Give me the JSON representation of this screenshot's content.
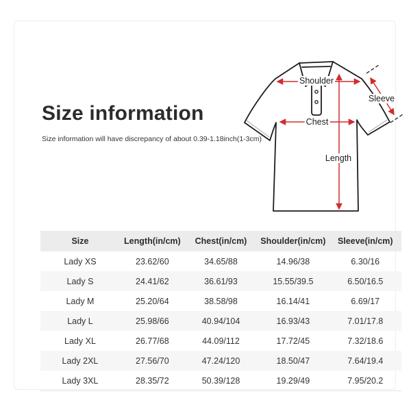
{
  "page": {
    "title": "Size information",
    "subtitle": "Size information will have discrepancy of about 0.39-1.18inch(1-3cm)"
  },
  "diagram": {
    "labels": {
      "shoulder": "Shoulder",
      "sleeve": "Sleeve",
      "chest": "Chest",
      "length": "Length"
    }
  },
  "size_table": {
    "columns": [
      "Size",
      "Length(in/cm)",
      "Chest(in/cm)",
      "Shoulder(in/cm)",
      "Sleeve(in/cm)"
    ],
    "rows": [
      [
        "Lady XS",
        "23.62/60",
        "34.65/88",
        "14.96/38",
        "6.30/16"
      ],
      [
        "Lady S",
        "24.41/62",
        "36.61/93",
        "15.55/39.5",
        "6.50/16.5"
      ],
      [
        "Lady M",
        "25.20/64",
        "38.58/98",
        "16.14/41",
        "6.69/17"
      ],
      [
        "Lady L",
        "25.98/66",
        "40.94/104",
        "16.93/43",
        "7.01/17.8"
      ],
      [
        "Lady XL",
        "26.77/68",
        "44.09/112",
        "17.72/45",
        "7.32/18.6"
      ],
      [
        "Lady 2XL",
        "27.56/70",
        "47.24/120",
        "18.50/47",
        "7.64/19.4"
      ],
      [
        "Lady 3XL",
        "28.35/72",
        "50.39/128",
        "19.29/49",
        "7.95/20.2"
      ]
    ]
  },
  "colors": {
    "arrow_color": "#cf2e2e",
    "outline_color": "#1c1c1c",
    "header_bg": "#ececec",
    "stripe_bg": "#f6f6f6",
    "frame_border": "#ededed",
    "text_dark": "#2b2b2b",
    "text_body": "#333333"
  }
}
